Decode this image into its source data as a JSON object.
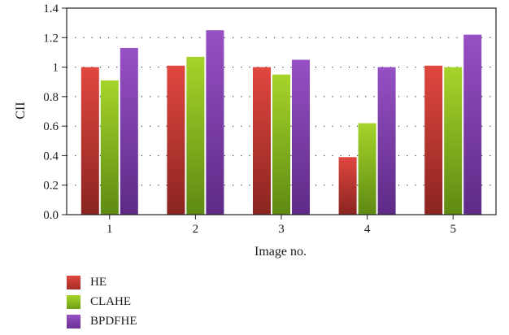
{
  "chart_data": {
    "type": "bar",
    "categories": [
      "1",
      "2",
      "3",
      "4",
      "5"
    ],
    "series": [
      {
        "name": "HE",
        "values": [
          1.0,
          1.01,
          1.0,
          0.39,
          1.01
        ],
        "color": "#d63a34"
      },
      {
        "name": "CLAHE",
        "values": [
          0.91,
          1.07,
          0.95,
          0.62,
          1.0
        ],
        "color": "#98c71c"
      },
      {
        "name": "BPDFHE",
        "values": [
          1.13,
          1.25,
          1.05,
          1.0,
          1.22
        ],
        "color": "#8b43b8"
      }
    ],
    "xlabel": "Image no.",
    "ylabel": "CII",
    "ylim": [
      0,
      1.4
    ],
    "yticks": [
      "0.0",
      "0.2",
      "0.4",
      "0.6",
      "0.8",
      "1",
      "1.2",
      "1.4"
    ],
    "grid": "dotted-horizontal",
    "legend_position": "bottom-left"
  }
}
